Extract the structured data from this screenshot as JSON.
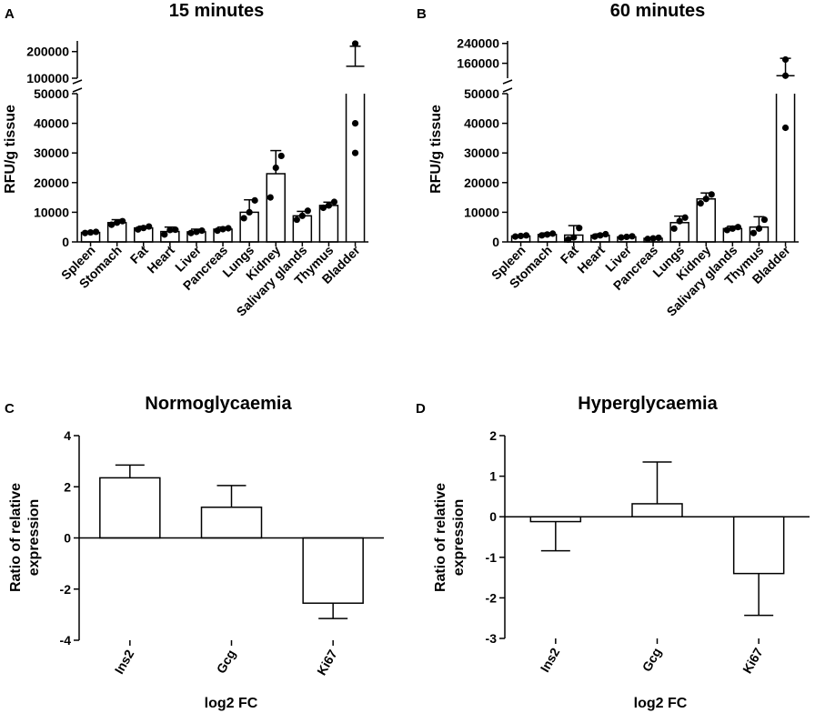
{
  "chart_data": [
    {
      "id": "A",
      "panel_label": "A",
      "type": "bar",
      "title": "15 minutes",
      "ylabel": "RFU/g tissue",
      "xlabel": "",
      "categories": [
        "Spleen",
        "Stomach",
        "Fat",
        "Heart",
        "Liver",
        "Pancreas",
        "Lungs",
        "Kidney",
        "Salivary glands",
        "Thymus",
        "Bladder"
      ],
      "values": [
        3200,
        6500,
        4700,
        3500,
        3400,
        4300,
        10000,
        23000,
        8800,
        12300,
        145000
      ],
      "errors": [
        300,
        1000,
        600,
        1500,
        900,
        700,
        4200,
        7800,
        1500,
        1100,
        75000
      ],
      "points": [
        [
          3000,
          3200,
          3400
        ],
        [
          5800,
          6500,
          7000
        ],
        [
          4200,
          4700,
          5200
        ],
        [
          2500,
          4000,
          4100
        ],
        [
          3000,
          3400,
          3800
        ],
        [
          3800,
          4300,
          4600
        ],
        [
          8000,
          10000,
          14000
        ],
        [
          15000,
          25000,
          29000
        ],
        [
          7500,
          8800,
          10500
        ],
        [
          11500,
          12300,
          13500
        ],
        [
          30000,
          40000,
          230000
        ]
      ],
      "axis_broken": true,
      "lower_ylim": [
        0,
        50000
      ],
      "lower_ticks": [
        "0",
        "10000",
        "20000",
        "30000",
        "40000",
        "50000"
      ],
      "lower_tick_values": [
        0,
        10000,
        20000,
        30000,
        40000,
        50000
      ],
      "upper_ylim": [
        100000,
        240000
      ],
      "upper_ticks": [
        "100000",
        "200000"
      ],
      "upper_tick_values": [
        100000,
        200000
      ]
    },
    {
      "id": "B",
      "panel_label": "B",
      "type": "bar",
      "title": "60 minutes",
      "ylabel": "RFU/g tissue",
      "xlabel": "",
      "categories": [
        "Spleen",
        "Stomach",
        "Fat",
        "Heart",
        "Liver",
        "Pancreas",
        "Lungs",
        "Kidney",
        "Salivary glands",
        "Thymus",
        "Bladder"
      ],
      "values": [
        2000,
        2500,
        2300,
        2200,
        1700,
        1200,
        6500,
        14500,
        4500,
        5000,
        110000
      ],
      "errors": [
        300,
        500,
        3200,
        500,
        200,
        200,
        2200,
        2000,
        800,
        3500,
        70000
      ],
      "points": [
        [
          1800,
          2000,
          2200
        ],
        [
          2200,
          2500,
          2800
        ],
        [
          800,
          1500,
          4700
        ],
        [
          1800,
          2200,
          2600
        ],
        [
          1500,
          1700,
          1900
        ],
        [
          1000,
          1200,
          1400
        ],
        [
          4500,
          7000,
          8200
        ],
        [
          13000,
          14500,
          16000
        ],
        [
          4000,
          4500,
          5000
        ],
        [
          3000,
          4500,
          7500
        ],
        [
          38500,
          110000,
          175000
        ]
      ],
      "axis_broken": true,
      "lower_ylim": [
        0,
        50000
      ],
      "lower_ticks": [
        "0",
        "10000",
        "20000",
        "30000",
        "40000",
        "50000"
      ],
      "lower_tick_values": [
        0,
        10000,
        20000,
        30000,
        40000,
        50000
      ],
      "upper_ylim": [
        100000,
        250000
      ],
      "upper_ticks": [
        "160000",
        "240000"
      ],
      "upper_tick_values": [
        160000,
        240000
      ]
    },
    {
      "id": "C",
      "panel_label": "C",
      "type": "bar",
      "title": "Normoglycaemia",
      "ylabel": "Ratio of relative expression",
      "ylabel_lines": [
        "Ratio of relative",
        "expression"
      ],
      "xlabel": "log2 FC",
      "categories": [
        "Ins2",
        "Gcg",
        "Ki67"
      ],
      "values": [
        2.35,
        1.2,
        -2.55
      ],
      "errors": [
        0.5,
        0.85,
        0.6
      ],
      "ylim": [
        -4,
        4
      ],
      "ticks": [
        "-4",
        "-2",
        "0",
        "2",
        "4"
      ],
      "tick_values": [
        -4,
        -2,
        0,
        2,
        4
      ]
    },
    {
      "id": "D",
      "panel_label": "D",
      "type": "bar",
      "title": "Hyperglycaemia",
      "ylabel": "Ratio of relative expression",
      "ylabel_lines": [
        "Ratio of relative",
        "expression"
      ],
      "xlabel": "log2 FC",
      "categories": [
        "Ins2",
        "Gcg",
        "Ki67"
      ],
      "values": [
        -0.12,
        0.32,
        -1.4
      ],
      "errors": [
        0.72,
        1.03,
        1.03
      ],
      "ylim": [
        -3,
        2
      ],
      "ticks": [
        "-3",
        "-2",
        "-1",
        "0",
        "1",
        "2"
      ],
      "tick_values": [
        -3,
        -2,
        -1,
        0,
        1,
        2
      ]
    }
  ]
}
